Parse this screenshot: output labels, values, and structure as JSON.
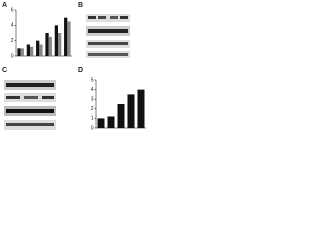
{
  "panels": [
    "A",
    "B",
    "C",
    "D"
  ],
  "chart_data": [
    {
      "type": "bar",
      "categories": [
        null,
        null,
        null,
        null,
        null,
        null
      ],
      "series": [
        {
          "color": "#111111",
          "values": [
            1,
            1.5,
            2,
            3,
            4,
            5
          ]
        },
        {
          "color": "#888888",
          "values": [
            1,
            1.2,
            1.5,
            2.5,
            3,
            4.5
          ]
        }
      ],
      "ylim": [
        0,
        6
      ],
      "yticks": [
        0,
        2,
        4,
        6
      ]
    },
    {
      "type": "bar",
      "categories": [
        null,
        null,
        null,
        null,
        null
      ],
      "series": [
        {
          "color": "#111111",
          "values": [
            1,
            1.2,
            2.5,
            3.5,
            4
          ]
        }
      ],
      "ylim": [
        0,
        5
      ],
      "yticks": [
        0,
        1,
        2,
        3,
        4,
        5
      ]
    }
  ]
}
